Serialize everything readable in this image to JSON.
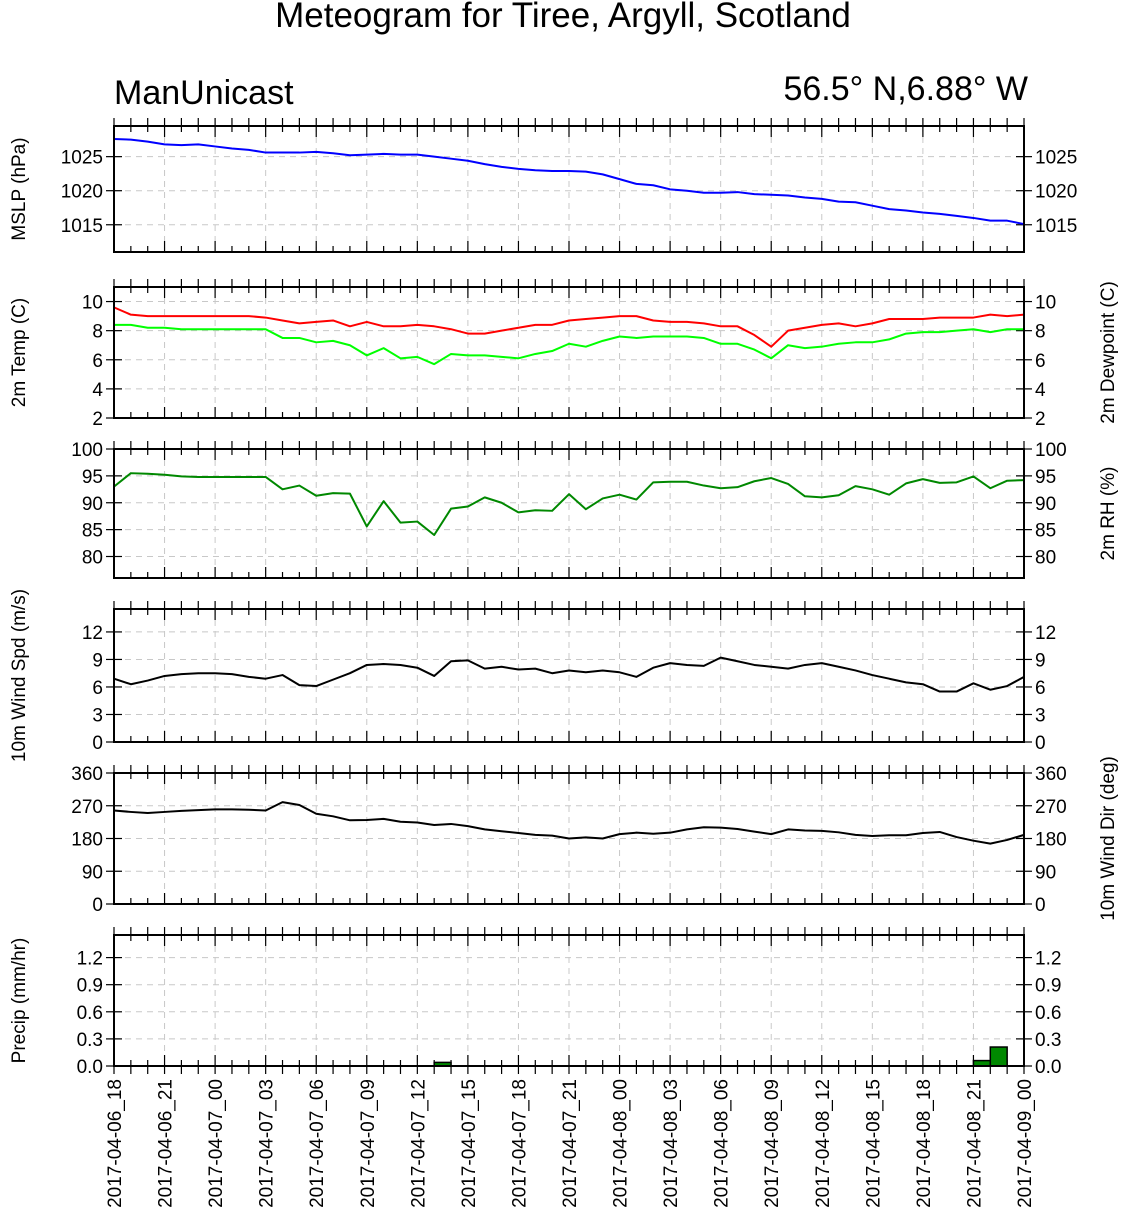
{
  "title": "Meteogram for Tiree, Argyll, Scotland",
  "left_subtitle": "ManUnicast",
  "right_subtitle": "56.5° N,6.88° W",
  "chart_data": [
    {
      "type": "line",
      "ylabel": "MSLP (hPa)",
      "right_label": "",
      "ylim": [
        1011,
        1029.5
      ],
      "yticks": [
        1015,
        1020,
        1025
      ],
      "x_hours": [
        0,
        1,
        2,
        3,
        4,
        5,
        6,
        7,
        8,
        9,
        10,
        11,
        12,
        13,
        14,
        15,
        16,
        17,
        18,
        19,
        20,
        21,
        22,
        23,
        24,
        25,
        26,
        27,
        28,
        29,
        30,
        31,
        32,
        33,
        34,
        35,
        36,
        37,
        38,
        39,
        40,
        41,
        42,
        43,
        44,
        45,
        46,
        47,
        48,
        49,
        50,
        51,
        52,
        53,
        54
      ],
      "series": [
        {
          "color": "#0000ff",
          "values": [
            1027.6,
            1027.5,
            1027.2,
            1026.8,
            1026.7,
            1026.8,
            1026.5,
            1026.2,
            1026.0,
            1025.6,
            1025.6,
            1025.6,
            1025.7,
            1025.5,
            1025.2,
            1025.3,
            1025.4,
            1025.3,
            1025.3,
            1025.0,
            1024.7,
            1024.4,
            1023.9,
            1023.5,
            1023.2,
            1023.0,
            1022.9,
            1022.9,
            1022.8,
            1022.4,
            1021.7,
            1021.0,
            1020.8,
            1020.2,
            1020.0,
            1019.7,
            1019.7,
            1019.8,
            1019.5,
            1019.4,
            1019.3,
            1019.0,
            1018.8,
            1018.4,
            1018.3,
            1017.8,
            1017.3,
            1017.1,
            1016.8,
            1016.6,
            1016.3,
            1016.0,
            1015.6,
            1015.6,
            1015.1
          ]
        }
      ]
    },
    {
      "type": "line",
      "ylabel": "2m Temp (C)",
      "right_label": "2m Dewpoint (C)",
      "ylim": [
        2,
        11
      ],
      "yticks": [
        2,
        4,
        6,
        8,
        10
      ],
      "x_hours": [
        0,
        1,
        2,
        3,
        4,
        5,
        6,
        7,
        8,
        9,
        10,
        11,
        12,
        13,
        14,
        15,
        16,
        17,
        18,
        19,
        20,
        21,
        22,
        23,
        24,
        25,
        26,
        27,
        28,
        29,
        30,
        31,
        32,
        33,
        34,
        35,
        36,
        37,
        38,
        39,
        40,
        41,
        42,
        43,
        44,
        45,
        46,
        47,
        48,
        49,
        50,
        51,
        52,
        53,
        54
      ],
      "series": [
        {
          "color": "#ff0000",
          "values": [
            9.6,
            9.1,
            9.0,
            9.0,
            9.0,
            9.0,
            9.0,
            9.0,
            9.0,
            8.9,
            8.7,
            8.5,
            8.6,
            8.7,
            8.3,
            8.6,
            8.3,
            8.3,
            8.4,
            8.3,
            8.1,
            7.8,
            7.8,
            8.0,
            8.2,
            8.4,
            8.4,
            8.7,
            8.8,
            8.9,
            9.0,
            9.0,
            8.7,
            8.6,
            8.6,
            8.5,
            8.3,
            8.3,
            7.7,
            6.9,
            8.0,
            8.2,
            8.4,
            8.5,
            8.3,
            8.5,
            8.8,
            8.8,
            8.8,
            8.9,
            8.9,
            8.9,
            9.1,
            9.0,
            9.1
          ]
        },
        {
          "color": "#00ff00",
          "values": [
            8.4,
            8.4,
            8.2,
            8.2,
            8.1,
            8.1,
            8.1,
            8.1,
            8.1,
            8.1,
            7.5,
            7.5,
            7.2,
            7.3,
            7.0,
            6.3,
            6.8,
            6.1,
            6.2,
            5.7,
            6.4,
            6.3,
            6.3,
            6.2,
            6.1,
            6.4,
            6.6,
            7.1,
            6.9,
            7.3,
            7.6,
            7.5,
            7.6,
            7.6,
            7.6,
            7.5,
            7.1,
            7.1,
            6.7,
            6.1,
            7.0,
            6.8,
            6.9,
            7.1,
            7.2,
            7.2,
            7.4,
            7.8,
            7.9,
            7.9,
            8.0,
            8.1,
            7.9,
            8.1,
            8.1
          ]
        }
      ]
    },
    {
      "type": "line",
      "ylabel": "",
      "right_label": "2m RH (%)",
      "ylim": [
        76,
        100
      ],
      "yticks": [
        80,
        85,
        90,
        95,
        100
      ],
      "x_hours": [
        0,
        1,
        2,
        3,
        4,
        5,
        6,
        7,
        8,
        9,
        10,
        11,
        12,
        13,
        14,
        15,
        16,
        17,
        18,
        19,
        20,
        21,
        22,
        23,
        24,
        25,
        26,
        27,
        28,
        29,
        30,
        31,
        32,
        33,
        34,
        35,
        36,
        37,
        38,
        39,
        40,
        41,
        42,
        43,
        44,
        45,
        46,
        47,
        48,
        49,
        50,
        51,
        52,
        53,
        54
      ],
      "series": [
        {
          "color": "#008800",
          "values": [
            93.0,
            95.5,
            95.4,
            95.2,
            94.9,
            94.8,
            94.8,
            94.8,
            94.8,
            94.8,
            92.5,
            93.2,
            91.3,
            91.8,
            91.7,
            85.6,
            90.3,
            86.3,
            86.5,
            84.0,
            88.9,
            89.3,
            91.0,
            90.0,
            88.2,
            88.6,
            88.5,
            91.6,
            88.8,
            90.8,
            91.5,
            90.6,
            93.8,
            93.9,
            93.9,
            93.2,
            92.7,
            92.9,
            94.0,
            94.6,
            93.5,
            91.2,
            91.0,
            91.4,
            93.1,
            92.5,
            91.5,
            93.6,
            94.4,
            93.7,
            93.8,
            94.9,
            92.7,
            94.1,
            94.2
          ]
        }
      ]
    },
    {
      "type": "line",
      "ylabel": "10m Wind Spd (m/s)",
      "right_label": "",
      "ylim": [
        0,
        14.5
      ],
      "yticks": [
        0,
        3,
        6,
        9,
        12
      ],
      "x_hours": [
        0,
        1,
        2,
        3,
        4,
        5,
        6,
        7,
        8,
        9,
        10,
        11,
        12,
        13,
        14,
        15,
        16,
        17,
        18,
        19,
        20,
        21,
        22,
        23,
        24,
        25,
        26,
        27,
        28,
        29,
        30,
        31,
        32,
        33,
        34,
        35,
        36,
        37,
        38,
        39,
        40,
        41,
        42,
        43,
        44,
        45,
        46,
        47,
        48,
        49,
        50,
        51,
        52,
        53,
        54
      ],
      "series": [
        {
          "color": "#000000",
          "values": [
            6.9,
            6.3,
            6.7,
            7.2,
            7.4,
            7.5,
            7.5,
            7.4,
            7.1,
            6.9,
            7.3,
            6.2,
            6.1,
            6.8,
            7.5,
            8.4,
            8.5,
            8.4,
            8.1,
            7.2,
            8.8,
            8.9,
            8.0,
            8.2,
            7.9,
            8.0,
            7.5,
            7.8,
            7.6,
            7.8,
            7.6,
            7.1,
            8.1,
            8.6,
            8.4,
            8.3,
            9.2,
            8.8,
            8.4,
            8.2,
            8.0,
            8.4,
            8.6,
            8.2,
            7.8,
            7.3,
            6.9,
            6.5,
            6.3,
            5.5,
            5.5,
            6.4,
            5.7,
            6.1,
            7.1
          ]
        }
      ]
    },
    {
      "type": "line",
      "ylabel": "",
      "right_label": "10m Wind Dir (deg)",
      "ylim": [
        0,
        360
      ],
      "yticks": [
        0,
        90,
        180,
        270,
        360
      ],
      "x_hours": [
        0,
        1,
        2,
        3,
        4,
        5,
        6,
        7,
        8,
        9,
        10,
        11,
        12,
        13,
        14,
        15,
        16,
        17,
        18,
        19,
        20,
        21,
        22,
        23,
        24,
        25,
        26,
        27,
        28,
        29,
        30,
        31,
        32,
        33,
        34,
        35,
        36,
        37,
        38,
        39,
        40,
        41,
        42,
        43,
        44,
        45,
        46,
        47,
        48,
        49,
        50,
        51,
        52,
        53,
        54
      ],
      "series": [
        {
          "color": "#000000",
          "values": [
            257,
            253,
            250,
            253,
            256,
            258,
            260,
            260,
            259,
            257,
            280,
            272,
            248,
            241,
            230,
            231,
            234,
            226,
            224,
            217,
            220,
            214,
            205,
            200,
            195,
            190,
            188,
            180,
            183,
            180,
            192,
            196,
            193,
            196,
            205,
            211,
            210,
            206,
            199,
            192,
            205,
            202,
            201,
            197,
            190,
            187,
            189,
            189,
            195,
            198,
            184,
            174,
            166,
            176,
            190
          ]
        }
      ]
    },
    {
      "type": "bar",
      "ylabel": "Precip (mm/hr)",
      "right_label": "",
      "ylim": [
        0,
        1.45
      ],
      "yticks": [
        "0.0",
        "0.3",
        "0.6",
        "0.9",
        "1.2"
      ],
      "bar_color": "#008800",
      "bars": [
        {
          "start_hour": 19,
          "end_hour": 20,
          "value": 0.04
        },
        {
          "start_hour": 51,
          "end_hour": 52,
          "value": 0.06
        },
        {
          "start_hour": 52,
          "end_hour": 53,
          "value": 0.21
        }
      ]
    }
  ],
  "x_tick_labels": [
    "2017-04-06_18",
    "2017-04-06_21",
    "2017-04-07_00",
    "2017-04-07_03",
    "2017-04-07_06",
    "2017-04-07_09",
    "2017-04-07_12",
    "2017-04-07_15",
    "2017-04-07_18",
    "2017-04-07_21",
    "2017-04-08_00",
    "2017-04-08_03",
    "2017-04-08_06",
    "2017-04-08_09",
    "2017-04-08_12",
    "2017-04-08_15",
    "2017-04-08_18",
    "2017-04-08_21",
    "2017-04-09_00"
  ]
}
